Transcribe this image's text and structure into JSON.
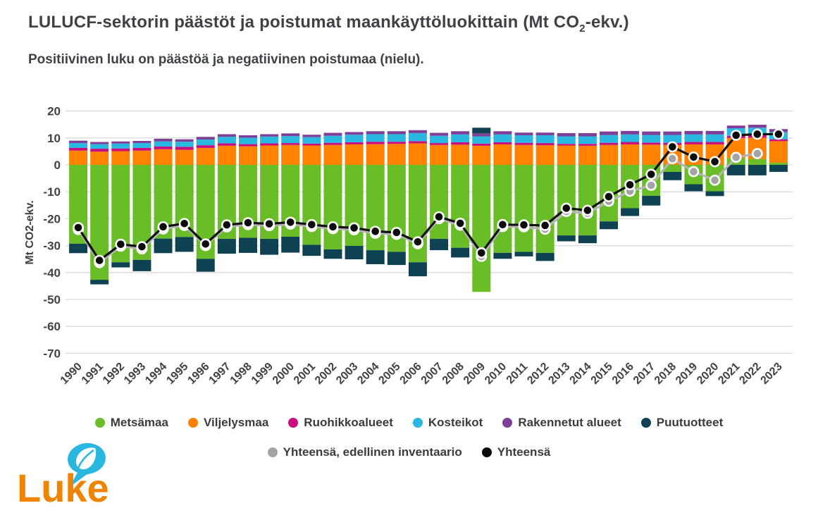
{
  "header": {
    "title_prefix": "LULUCF-sektorin päästöt ja poistumat maankäyttöluokittain (Mt CO",
    "title_sub": "2",
    "title_suffix": "-ekv.)",
    "subtitle": "Positiivinen luku on päästöä ja negatiivinen poistumaa (nielu)."
  },
  "logo": {
    "text": "Luke",
    "orange": "#f08300",
    "cyan": "#29b7e0"
  },
  "style": {
    "grid_color": "#d9d9d9",
    "text_color": "#3e4247",
    "black_line": "#111111",
    "gray_line": "#b5b5b5",
    "gray_dot": "#a3a3a3"
  },
  "chart_data": {
    "type": "bar",
    "stacked": true,
    "title": "LULUCF-sektorin päästöt ja poistumat maankäyttöluokittain (Mt CO2-ekv.)",
    "subtitle": "Positiivinen luku on päästöä ja negatiivinen poistumaa (nielu).",
    "ylabel": "Mt CO2-ekv.",
    "xlabel": "",
    "ylim": [
      -70,
      20
    ],
    "ytick_step": 10,
    "grid": true,
    "legend_position": "bottom",
    "categories": [
      1990,
      1991,
      1992,
      1993,
      1994,
      1995,
      1996,
      1997,
      1998,
      1999,
      2000,
      2001,
      2002,
      2003,
      2004,
      2005,
      2006,
      2007,
      2008,
      2009,
      2010,
      2011,
      2012,
      2013,
      2014,
      2015,
      2016,
      2017,
      2018,
      2019,
      2020,
      2021,
      2022,
      2023
    ],
    "series": [
      {
        "key": "metsamaa",
        "name": "Metsämaa",
        "color": "#69be28",
        "values": [
          -29.3,
          -42.7,
          -36.2,
          -35.3,
          -27.4,
          -26.8,
          -34.9,
          -27.5,
          -27.1,
          -27.5,
          -26.7,
          -29.7,
          -31.4,
          -30.1,
          -31.7,
          -32.3,
          -36.2,
          -27.5,
          -30.8,
          -47.2,
          -32.7,
          -32.3,
          -32.7,
          -26.2,
          -26.2,
          -21.0,
          -16.1,
          -11.5,
          -2.6,
          -7.2,
          -9.8,
          2.5,
          2.2,
          0.8
        ]
      },
      {
        "key": "viljelysmaa",
        "name": "Viljelysmaa",
        "color": "#ff8200",
        "values": [
          5.3,
          4.9,
          5.1,
          5.3,
          5.8,
          5.6,
          6.3,
          7.1,
          6.9,
          7.2,
          7.4,
          7.2,
          7.4,
          7.6,
          7.7,
          7.8,
          8.0,
          7.4,
          7.5,
          7.1,
          7.6,
          7.4,
          7.3,
          7.2,
          7.1,
          7.4,
          7.6,
          7.5,
          7.4,
          7.6,
          7.6,
          7.5,
          7.9,
          8.0
        ]
      },
      {
        "key": "ruohikkoalueet",
        "name": "Ruohikkoalueet",
        "color": "#cb0c7e",
        "values": [
          1.0,
          1.1,
          1.0,
          1.0,
          1.0,
          1.1,
          1.0,
          0.9,
          0.8,
          0.8,
          0.7,
          0.7,
          0.8,
          0.8,
          0.9,
          0.8,
          0.8,
          0.7,
          0.9,
          0.8,
          0.8,
          0.8,
          0.8,
          0.6,
          0.7,
          0.8,
          0.9,
          0.8,
          0.8,
          0.9,
          0.9,
          0.8,
          0.9,
          0.7
        ]
      },
      {
        "key": "kosteikot",
        "name": "Kosteikot",
        "color": "#29b8e0",
        "values": [
          1.8,
          1.7,
          1.8,
          1.8,
          1.9,
          1.9,
          2.1,
          2.4,
          2.4,
          2.5,
          2.6,
          2.4,
          2.6,
          2.8,
          2.8,
          2.8,
          3.0,
          2.7,
          2.9,
          2.7,
          2.9,
          2.8,
          2.9,
          2.8,
          2.8,
          2.9,
          2.8,
          2.8,
          2.9,
          2.8,
          2.8,
          2.8,
          2.8,
          2.7
        ]
      },
      {
        "key": "rakennetut",
        "name": "Rakennetut alueet",
        "color": "#7f3f98",
        "values": [
          0.9,
          0.8,
          0.8,
          0.8,
          1.0,
          0.9,
          1.0,
          1.0,
          0.9,
          0.9,
          1.0,
          0.9,
          1.1,
          1.0,
          1.1,
          1.1,
          1.1,
          1.1,
          1.2,
          1.1,
          1.2,
          1.0,
          1.0,
          1.2,
          1.2,
          1.3,
          1.3,
          1.3,
          1.3,
          1.3,
          1.3,
          1.0,
          1.1,
          1.1
        ]
      },
      {
        "key": "puutuotteet",
        "name": "Puutuotteet",
        "color": "#0e4152",
        "values": [
          -3.5,
          -1.7,
          -1.9,
          -4.2,
          -5.4,
          -5.5,
          -4.8,
          -5.5,
          -5.6,
          -5.9,
          -5.9,
          -4.1,
          -3.5,
          -5.0,
          -5.2,
          -4.9,
          -5.2,
          -4.2,
          -3.6,
          2.1,
          -2.2,
          -1.7,
          -3.0,
          -2.2,
          -2.9,
          -2.9,
          -2.9,
          -3.6,
          -3.1,
          -2.6,
          -1.8,
          -3.9,
          -3.9,
          -2.6
        ]
      }
    ],
    "line_series": [
      {
        "key": "edellinen",
        "name": "Yhteensä, edellinen inventaario",
        "color": "#a3a3a3",
        "values": [
          -24.0,
          -36.3,
          -30.2,
          -31.2,
          -23.8,
          -22.5,
          -30.0,
          -23.0,
          -22.2,
          -22.6,
          -22.0,
          -22.9,
          -23.7,
          -24.1,
          -25.4,
          -25.8,
          -29.3,
          -20.0,
          -22.4,
          -34.0,
          -22.9,
          -23.0,
          -23.9,
          -17.3,
          -18.0,
          -13.5,
          -9.8,
          -7.6,
          2.3,
          -2.5,
          -5.7,
          2.8,
          4.2,
          null
        ]
      },
      {
        "key": "yhteensa",
        "name": "Yhteensä",
        "color": "#000000",
        "values": [
          -23.3,
          -35.5,
          -29.5,
          -30.4,
          -23.0,
          -21.8,
          -29.4,
          -22.3,
          -21.5,
          -21.9,
          -21.3,
          -22.2,
          -23.0,
          -23.4,
          -24.7,
          -25.1,
          -28.6,
          -19.3,
          -21.7,
          -32.7,
          -22.2,
          -22.3,
          -22.5,
          -16.1,
          -16.9,
          -11.8,
          -7.4,
          -3.5,
          6.7,
          2.9,
          1.2,
          11.0,
          11.4,
          11.4
        ]
      }
    ]
  }
}
